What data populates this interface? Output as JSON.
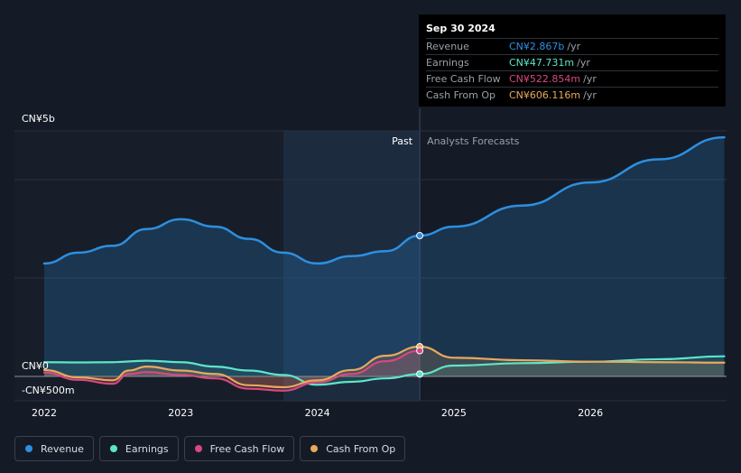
{
  "colors": {
    "revenue": "#2d8fe0",
    "earnings": "#5ee5c8",
    "free_cash_flow": "#d9487f",
    "cash_from_op": "#e8a95c"
  },
  "tooltip": {
    "date": "Sep 30 2024",
    "rows": [
      {
        "label": "Revenue",
        "value": "CN¥2.867b",
        "unit": "/yr"
      },
      {
        "label": "Earnings",
        "value": "CN¥47.731m",
        "unit": "/yr"
      },
      {
        "label": "Free Cash Flow",
        "value": "CN¥522.854m",
        "unit": "/yr"
      },
      {
        "label": "Cash From Op",
        "value": "CN¥606.116m",
        "unit": "/yr"
      }
    ]
  },
  "legend": [
    {
      "label": "Revenue",
      "key": "revenue"
    },
    {
      "label": "Earnings",
      "key": "earnings"
    },
    {
      "label": "Free Cash Flow",
      "key": "free_cash_flow"
    },
    {
      "label": "Cash From Op",
      "key": "cash_from_op"
    }
  ],
  "chart_data": {
    "type": "line",
    "y_unit": "CN¥ millions",
    "ylim": [
      -500,
      5000
    ],
    "xlim": [
      2021.82,
      2026.98
    ],
    "y_tick_labels": [
      {
        "value": 5000,
        "label": "CN¥5b"
      },
      {
        "value": 0,
        "label": "CN¥0"
      },
      {
        "value": -500,
        "label": "-CN¥500m"
      }
    ],
    "x_ticks": [
      {
        "value": 2022,
        "label": "2022"
      },
      {
        "value": 2023,
        "label": "2023"
      },
      {
        "value": 2024,
        "label": "2024"
      },
      {
        "value": 2025,
        "label": "2025"
      },
      {
        "value": 2026,
        "label": "2026"
      }
    ],
    "past_label": "Past",
    "forecast_label": "Analysts Forecasts",
    "past_region_start": 2023.75,
    "divider_x": 2024.75,
    "series": [
      {
        "name": "Revenue",
        "key": "revenue",
        "x": [
          2022.0,
          2022.25,
          2022.5,
          2022.75,
          2023.0,
          2023.25,
          2023.5,
          2023.75,
          2024.0,
          2024.25,
          2024.5,
          2024.75,
          2025.0,
          2025.5,
          2026.0,
          2026.5,
          2026.98
        ],
        "values": [
          2300,
          2520,
          2660,
          3000,
          3200,
          3050,
          2800,
          2520,
          2300,
          2450,
          2550,
          2867,
          3050,
          3480,
          3950,
          4420,
          4870
        ]
      },
      {
        "name": "Earnings",
        "key": "earnings",
        "x": [
          2022.0,
          2022.25,
          2022.5,
          2022.75,
          2023.0,
          2023.25,
          2023.5,
          2023.75,
          2024.0,
          2024.25,
          2024.5,
          2024.75,
          2025.0,
          2025.5,
          2026.0,
          2026.5,
          2026.98
        ],
        "values": [
          290,
          285,
          290,
          320,
          290,
          200,
          120,
          30,
          -170,
          -110,
          -40,
          48,
          220,
          270,
          300,
          350,
          410
        ]
      },
      {
        "name": "Free Cash Flow",
        "key": "free_cash_flow",
        "x": [
          2022.0,
          2022.25,
          2022.5,
          2022.62,
          2022.75,
          2023.0,
          2023.25,
          2023.5,
          2023.75,
          2024.0,
          2024.25,
          2024.5,
          2024.75
        ],
        "values": [
          80,
          -70,
          -150,
          50,
          90,
          30,
          -40,
          -250,
          -290,
          -120,
          50,
          310,
          523
        ]
      },
      {
        "name": "Cash From Op",
        "key": "cash_from_op",
        "x": [
          2022.0,
          2022.25,
          2022.5,
          2022.62,
          2022.75,
          2023.0,
          2023.25,
          2023.5,
          2023.75,
          2024.0,
          2024.25,
          2024.5,
          2024.75,
          2025.0,
          2025.5,
          2026.0,
          2026.5,
          2026.98
        ],
        "values": [
          130,
          -20,
          -80,
          120,
          200,
          120,
          50,
          -180,
          -220,
          -80,
          130,
          420,
          606,
          380,
          330,
          300,
          290,
          280
        ]
      }
    ],
    "highlight_x": 2024.75,
    "highlight_values": {
      "revenue": 2867,
      "earnings": 48,
      "free_cash_flow": 523,
      "cash_from_op": 606
    }
  }
}
